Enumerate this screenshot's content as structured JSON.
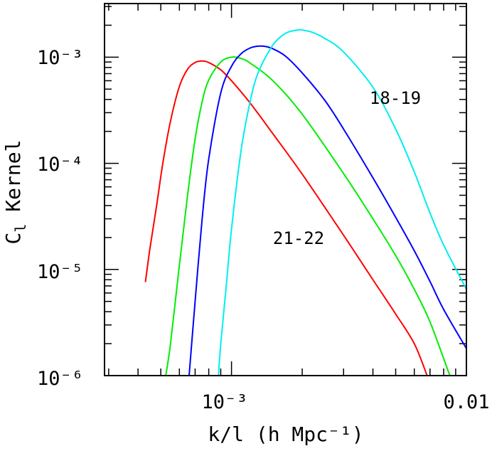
{
  "chart_data": {
    "type": "line",
    "title": "",
    "xlabel": "k/l (h Mpc⁻¹)",
    "ylabel": "C_l Kernel",
    "ylabel_main": "C",
    "ylabel_sub": "l",
    "ylabel_rest": "Kernel",
    "x_scale": "log",
    "y_scale": "log",
    "xlim": [
      0.000288,
      0.01
    ],
    "ylim": [
      1e-06,
      0.0032
    ],
    "grid": false,
    "x_tick_labels": [
      {
        "value": 0.001,
        "label": "10⁻³"
      },
      {
        "value": 0.01,
        "label": "0.01"
      }
    ],
    "y_tick_labels": [
      {
        "value": 1e-06,
        "label": "10⁻⁶"
      },
      {
        "value": 1e-05,
        "label": "10⁻⁵"
      },
      {
        "value": 0.0001,
        "label": "10⁻⁴"
      },
      {
        "value": 0.001,
        "label": "10⁻³"
      }
    ],
    "series": [
      {
        "name": "21-22",
        "color": "#ff0000",
        "x": [
          0.00043,
          0.00045,
          0.00048,
          0.00051,
          0.00055,
          0.0006,
          0.00065,
          0.0007,
          0.00075,
          0.0008,
          0.0009,
          0.001,
          0.0012,
          0.0015,
          0.002,
          0.003,
          0.004,
          0.005,
          0.006,
          0.0068
        ],
        "y": [
          7.6e-06,
          1.6e-05,
          4e-05,
          0.0001,
          0.00025,
          0.00053,
          0.00077,
          0.00089,
          0.00092,
          0.00089,
          0.00076,
          0.0006,
          0.00037,
          0.00019,
          7.9e-05,
          2.1e-05,
          8e-06,
          3.8e-06,
          2e-06,
          1e-06
        ]
      },
      {
        "name": "",
        "color": "#00ee00",
        "x": [
          0.000525,
          0.00055,
          0.0006,
          0.00065,
          0.0007,
          0.00075,
          0.0008,
          0.0009,
          0.001,
          0.0011,
          0.0012,
          0.0015,
          0.002,
          0.003,
          0.004,
          0.005,
          0.006,
          0.007,
          0.0085
        ],
        "y": [
          1e-06,
          2e-06,
          1.1e-05,
          5e-05,
          0.00017,
          0.00038,
          0.00061,
          0.0009,
          0.001,
          0.00097,
          0.00088,
          0.0006,
          0.00029,
          8e-05,
          3e-05,
          1.35e-05,
          6.5e-06,
          3.2e-06,
          1e-06
        ]
      },
      {
        "name": "",
        "color": "#0000ff",
        "x": [
          0.00066,
          0.0007,
          0.00075,
          0.0008,
          0.0009,
          0.001,
          0.0011,
          0.0012,
          0.0013,
          0.0014,
          0.0015,
          0.0017,
          0.002,
          0.0025,
          0.003,
          0.004,
          0.005,
          0.006,
          0.007,
          0.008,
          0.01
        ],
        "y": [
          1e-06,
          5e-06,
          3e-05,
          0.00011,
          0.00046,
          0.00082,
          0.00108,
          0.00122,
          0.00127,
          0.00126,
          0.0012,
          0.00102,
          0.00071,
          0.00039,
          0.00021,
          7.3e-05,
          3.1e-05,
          1.5e-05,
          7.7e-06,
          4.2e-06,
          1.8e-06
        ]
      },
      {
        "name": "18-19",
        "color": "#00eeee",
        "x": [
          0.00088,
          0.0009,
          0.00095,
          0.001,
          0.0011,
          0.0012,
          0.0013,
          0.0015,
          0.0017,
          0.0019,
          0.002,
          0.0022,
          0.0025,
          0.003,
          0.004,
          0.005,
          0.006,
          0.007,
          0.008,
          0.01
        ],
        "y": [
          1e-06,
          2e-06,
          7e-06,
          2.4e-05,
          0.000135,
          0.00038,
          0.00072,
          0.0013,
          0.00168,
          0.0018,
          0.0018,
          0.00172,
          0.0015,
          0.00112,
          0.00052,
          0.00021,
          8.3e-05,
          3.4e-05,
          1.7e-05,
          6.5e-06
        ]
      }
    ]
  }
}
